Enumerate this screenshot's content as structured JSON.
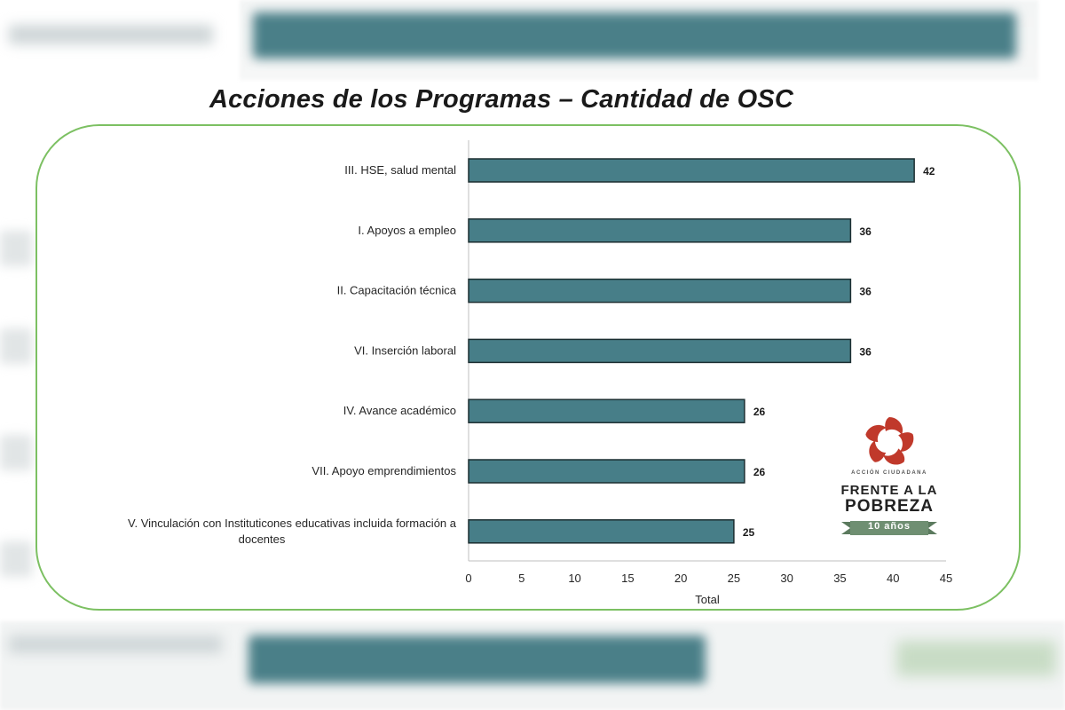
{
  "title": "Acciones de los Programas – Cantidad de OSC",
  "logo": {
    "small_text": "ACCIÓN CIUDADANA",
    "line1": "FRENTE A LA",
    "line2": "POBREZA",
    "years": "10 años"
  },
  "colors": {
    "bar": "#477e88",
    "bar_border": "#1c2e31",
    "panel_border": "#7cc062",
    "logo_red": "#c0392b",
    "logo_green": "#6f8f72"
  },
  "chart_data": {
    "type": "bar",
    "orientation": "horizontal",
    "categories": [
      "III. HSE, salud mental",
      "I. Apoyos a empleo",
      "II. Capacitación técnica",
      "VI. Inserción laboral",
      "IV. Avance académico",
      "VII. Apoyo emprendimientos",
      "V. Vinculación con Instituticones educativas incluida formación a docentes"
    ],
    "category_lines": [
      [
        "III. HSE, salud mental"
      ],
      [
        "I. Apoyos a empleo"
      ],
      [
        "II. Capacitación técnica"
      ],
      [
        "VI. Inserción laboral"
      ],
      [
        "IV. Avance académico"
      ],
      [
        "VII. Apoyo emprendimientos"
      ],
      [
        "V. Vinculación con Instituticones educativas incluida formación a",
        "docentes"
      ]
    ],
    "values": [
      42,
      36,
      36,
      36,
      26,
      26,
      25
    ],
    "xlabel": "Total",
    "ylabel": "",
    "xlim": [
      0,
      45
    ],
    "xticks": [
      0,
      5,
      10,
      15,
      20,
      25,
      30,
      35,
      40,
      45
    ],
    "data_labels": true,
    "grid": false
  }
}
